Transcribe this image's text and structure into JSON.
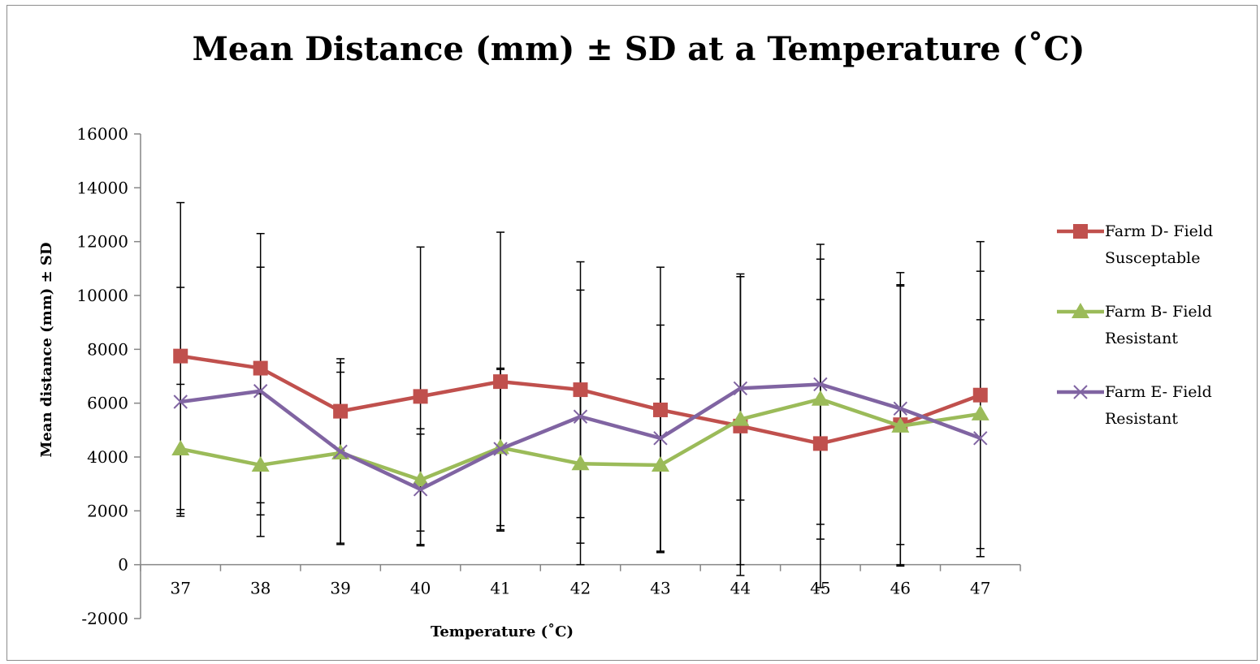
{
  "chart_data": {
    "type": "line",
    "title": "Mean Distance (mm) ± SD at a Temperature (˚C)",
    "xlabel": "Temperature (˚C)",
    "ylabel": "Mean distance (mm) ±  SD",
    "categories": [
      "37",
      "38",
      "39",
      "40",
      "41",
      "42",
      "43",
      "44",
      "45",
      "46",
      "47"
    ],
    "ylim": [
      -2000,
      16000
    ],
    "yticks": [
      16000,
      14000,
      12000,
      10000,
      8000,
      6000,
      4000,
      2000,
      0,
      -2000
    ],
    "ytick_labels": [
      "16000",
      "14000",
      "12000",
      "10000",
      "8000",
      "6000",
      "4000",
      "2000",
      "0",
      "-2000"
    ],
    "grid": false,
    "legend_position": "right",
    "series": [
      {
        "name_lines": [
          "Farm D- Field",
          "Susceptable"
        ],
        "color": "#c0504d",
        "marker": "square",
        "values": [
          7750,
          7300,
          5700,
          6250,
          6800,
          6500,
          5750,
          5150,
          4500,
          5200,
          6300
        ],
        "sd": [
          5700,
          5000,
          1450,
          5550,
          5550,
          4750,
          5300,
          5550,
          5350,
          5200,
          5700
        ]
      },
      {
        "name_lines": [
          "Farm B- Field",
          "Resistant"
        ],
        "color": "#9bbb59",
        "marker": "triangle",
        "values": [
          4300,
          3700,
          4150,
          3150,
          4350,
          3750,
          3700,
          5400,
          6150,
          5150,
          5600
        ],
        "sd": [
          2400,
          2650,
          3350,
          1900,
          2900,
          3750,
          3200,
          5400,
          5200,
          5200,
          5300
        ]
      },
      {
        "name_lines": [
          "Farm E- Field",
          "Resistant"
        ],
        "color": "#8064a2",
        "marker": "x",
        "values": [
          6050,
          6450,
          4200,
          2800,
          4300,
          5500,
          4700,
          6550,
          6700,
          5800,
          4700
        ],
        "sd": [
          4250,
          4600,
          3450,
          2050,
          3000,
          4700,
          4200,
          4150,
          5200,
          5050,
          4400
        ]
      }
    ]
  }
}
